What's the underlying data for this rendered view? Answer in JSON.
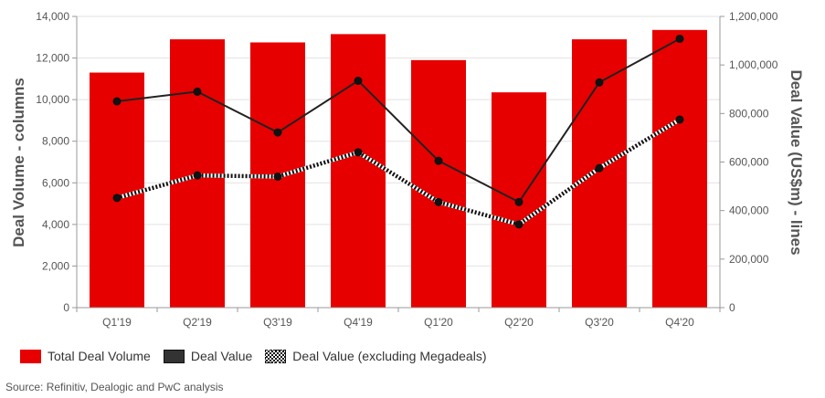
{
  "chart_data": {
    "type": "bar",
    "categories": [
      "Q1'19",
      "Q2'19",
      "Q3'19",
      "Q4'19",
      "Q1'20",
      "Q2'20",
      "Q3'20",
      "Q4'20"
    ],
    "series": [
      {
        "name": "Total Deal Volume",
        "type": "bar",
        "axis": "left",
        "color": "#e60000",
        "values": [
          11300,
          12900,
          12750,
          13150,
          11900,
          10350,
          12900,
          13350
        ]
      },
      {
        "name": "Deal Value",
        "type": "line",
        "axis": "right",
        "color": "#222222",
        "values": [
          850000,
          890000,
          722000,
          935000,
          605000,
          435000,
          928000,
          1108000
        ]
      },
      {
        "name": "Deal Value (excluding Megadeals)",
        "type": "line",
        "style": "dotted",
        "axis": "right",
        "color": "#111111",
        "values": [
          452000,
          545000,
          540000,
          640000,
          435000,
          343000,
          575000,
          775000
        ]
      }
    ],
    "ylabel": "Deal Volume - columns",
    "y2label": "Deal Value (US$m) - lines",
    "ylim": [
      0,
      14000
    ],
    "y2lim": [
      0,
      1200000
    ],
    "yticks": [
      "0",
      "2,000",
      "4,000",
      "6,000",
      "8,000",
      "10,000",
      "12,000",
      "14,000"
    ],
    "y2ticks": [
      "0",
      "200,000",
      "400,000",
      "600,000",
      "800,000",
      "1,000,000",
      "1,200,000"
    ],
    "grid": true,
    "legend_position": "bottom-left"
  },
  "legend": {
    "items": [
      "Total Deal Volume",
      "Deal Value",
      "Deal Value (excluding Megadeals)"
    ]
  },
  "source": "Source: Refinitiv, Dealogic and PwC analysis"
}
